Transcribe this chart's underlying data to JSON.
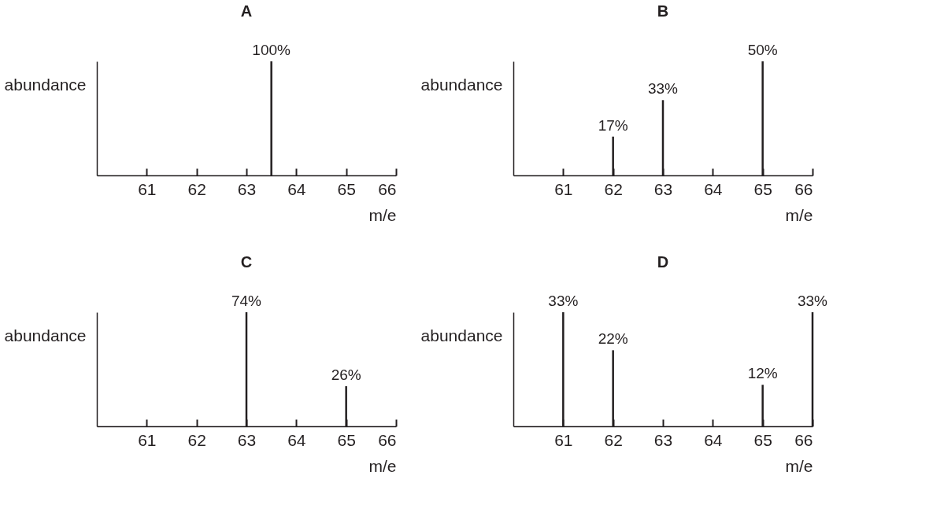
{
  "chart_data": [
    {
      "type": "bar",
      "title": "A",
      "xlabel": "m/e",
      "ylabel": "abundance",
      "x": [
        63.5
      ],
      "xlim": [
        60,
        66
      ],
      "xticks": [
        61,
        62,
        63,
        64,
        65,
        66
      ],
      "tick_labels": "x",
      "series": [
        {
          "color": "#231f20",
          "values": [
            100
          ],
          "value_labels": [
            "100%"
          ]
        }
      ]
    },
    {
      "type": "bar",
      "title": "B",
      "xlabel": "m/e",
      "ylabel": "abundance",
      "x": [
        62,
        63,
        65
      ],
      "xlim": [
        60,
        66
      ],
      "xticks": [
        61,
        62,
        63,
        64,
        65,
        66
      ],
      "tick_labels": "x",
      "series": [
        {
          "color": "#231f20",
          "values": [
            17,
            33,
            50
          ],
          "value_labels": [
            "17%",
            "33%",
            "50%"
          ]
        }
      ]
    },
    {
      "type": "bar",
      "title": "C",
      "xlabel": "m/e",
      "ylabel": "abundance",
      "x": [
        63,
        65
      ],
      "xlim": [
        60,
        66
      ],
      "xticks": [
        61,
        62,
        63,
        64,
        65,
        66
      ],
      "tick_labels": "x",
      "series": [
        {
          "color": "#231f20",
          "values": [
            74,
            26
          ],
          "value_labels": [
            "74%",
            "26%"
          ]
        }
      ]
    },
    {
      "type": "bar",
      "title": "D",
      "xlabel": "m/e",
      "ylabel": "abundance",
      "x": [
        61,
        62,
        65,
        66
      ],
      "xlim": [
        60,
        66
      ],
      "xticks": [
        61,
        62,
        63,
        64,
        65,
        66
      ],
      "tick_labels": "x",
      "series": [
        {
          "color": "#231f20",
          "values": [
            33,
            22,
            12,
            33
          ],
          "value_labels": [
            "33%",
            "22%",
            "12%",
            "33%"
          ]
        }
      ]
    }
  ]
}
